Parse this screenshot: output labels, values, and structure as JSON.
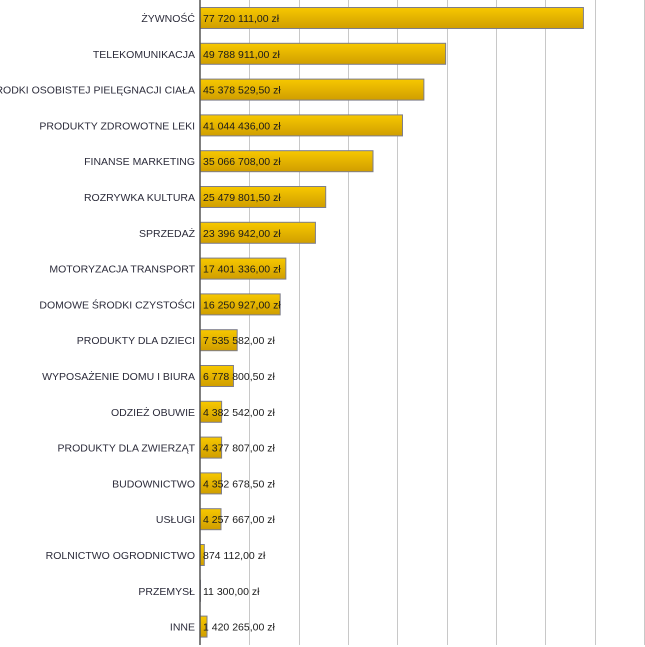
{
  "chart_data": {
    "type": "bar",
    "orientation": "horizontal",
    "title": "",
    "xlabel": "",
    "ylabel": "",
    "xlim": [
      0,
      90000000
    ],
    "grid": true,
    "grid_step": 10000000,
    "bar_color": "#e8b800",
    "categories": [
      "ŻYWNOŚĆ",
      "TELEKOMUNIKACJA",
      "ŚRODKI OSOBISTEJ PIELĘGNACJI CIAŁA",
      "PRODUKTY ZDROWOTNE LEKI",
      "FINANSE MARKETING",
      "ROZRYWKA KULTURA",
      "SPRZEDAŻ",
      "MOTORYZACJA TRANSPORT",
      "DOMOWE ŚRODKI CZYSTOŚCI",
      "PRODUKTY DLA DZIECI",
      "WYPOSAŻENIE DOMU I BIURA",
      "ODZIEŻ OBUWIE",
      "PRODUKTY DLA ZWIERZĄT",
      "BUDOWNICTWO",
      "USŁUGI",
      "ROLNICTWO OGRODNICTWO",
      "PRZEMYSŁ",
      "INNE"
    ],
    "values": [
      77720111.0,
      49788911.0,
      45378529.5,
      41044436.0,
      35066708.0,
      25479801.5,
      23396942.0,
      17401336.0,
      16250927.0,
      7535582.0,
      6778800.5,
      4382542.0,
      4377807.0,
      4352678.5,
      4257667.0,
      874112.0,
      11300.0,
      1420265.0
    ],
    "value_labels": [
      "77 720 111,00 zł",
      "49 788 911,00 zł",
      "45 378 529,50 zł",
      "41 044 436,00 zł",
      "35 066 708,00 zł",
      "25 479 801,50 zł",
      "23 396 942,00 zł",
      "17 401 336,00 zł",
      "16 250 927,00 zł",
      "7 535 582,00 zł",
      "6 778 800,50 zł",
      "4 382 542,00 zł",
      "4 377 807,00 zł",
      "4 352 678,50 zł",
      "4 257 667,00 zł",
      "874 112,00 zł",
      "11 300,00 zł",
      "1 420 265,00 zł"
    ]
  }
}
